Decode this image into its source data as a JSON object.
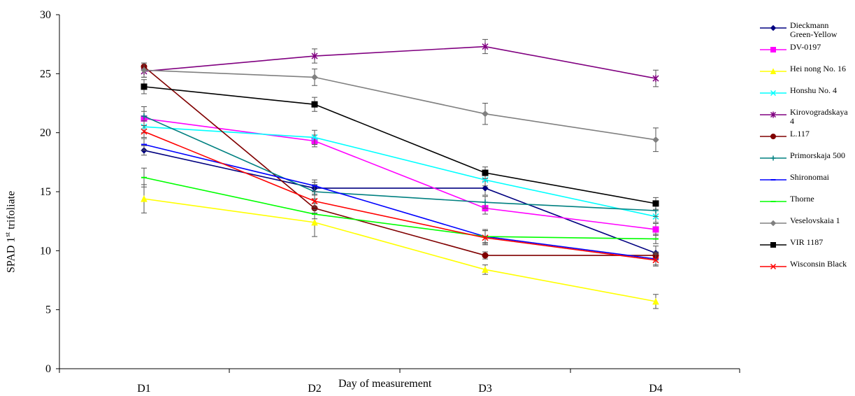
{
  "chart_data": {
    "type": "line",
    "xlabel": "Day of measurement",
    "ylabel_main": "SPAD 1",
    "ylabel_sup": "st",
    "ylabel_tail": " trifoliate",
    "categories": [
      "D1",
      "D2",
      "D3",
      "D4"
    ],
    "ylim": [
      0,
      30
    ],
    "yticks": [
      "0",
      "5",
      "10",
      "15",
      "20",
      "25",
      "30"
    ],
    "grid": false,
    "legend_position": "right",
    "series": [
      {
        "name": "Dieckmann Green-Yellow",
        "values": [
          18.5,
          15.3,
          15.3,
          9.8
        ],
        "err": [
          0.4,
          0.5,
          0.6,
          0.6
        ],
        "color": "#000080",
        "marker": "diamond"
      },
      {
        "name": "DV-0197",
        "values": [
          21.2,
          19.3,
          13.6,
          11.8
        ],
        "err": [
          0.6,
          0.5,
          0.5,
          0.5
        ],
        "color": "#ff00ff",
        "marker": "square"
      },
      {
        "name": "Hei nong No. 16",
        "values": [
          14.4,
          12.4,
          8.4,
          5.7
        ],
        "err": [
          1.2,
          1.2,
          0.4,
          0.6
        ],
        "color": "#ffff00",
        "marker": "triangle"
      },
      {
        "name": "Honshu No. 4",
        "values": [
          20.5,
          19.6,
          16.0,
          12.9
        ],
        "err": [
          0.5,
          0.6,
          0.5,
          0.5
        ],
        "color": "#00ffff",
        "marker": "x"
      },
      {
        "name": "Kirovogradskaya 4",
        "values": [
          25.2,
          26.5,
          27.3,
          24.6
        ],
        "err": [
          0.5,
          0.6,
          0.6,
          0.7
        ],
        "color": "#800080",
        "marker": "star"
      },
      {
        "name": "L.117",
        "values": [
          25.6,
          13.6,
          9.6,
          9.6
        ],
        "err": [
          0.3,
          0.4,
          0.3,
          0.3
        ],
        "color": "#800000",
        "marker": "circle"
      },
      {
        "name": "Primorskaja 500",
        "values": [
          21.4,
          15.0,
          14.1,
          13.4
        ],
        "err": [
          0.8,
          0.6,
          0.5,
          0.5
        ],
        "color": "#008080",
        "marker": "plus"
      },
      {
        "name": "Shironomai",
        "values": [
          19.0,
          15.5,
          11.2,
          9.3
        ],
        "err": [
          0.5,
          0.5,
          0.6,
          0.5
        ],
        "color": "#0000ff",
        "marker": "dash"
      },
      {
        "name": "Thorne",
        "values": [
          16.2,
          13.1,
          11.2,
          11.0
        ],
        "err": [
          0.8,
          0.4,
          0.5,
          0.4
        ],
        "color": "#00ff00",
        "marker": "dash"
      },
      {
        "name": "Veselovskaia 1",
        "values": [
          25.3,
          24.7,
          21.6,
          19.4
        ],
        "err": [
          0.6,
          0.7,
          0.9,
          1.0
        ],
        "color": "#808080",
        "marker": "diamond"
      },
      {
        "name": "VIR 1187",
        "values": [
          23.9,
          22.4,
          16.6,
          14.0
        ],
        "err": [
          0.6,
          0.6,
          0.5,
          0.5
        ],
        "color": "#000000",
        "marker": "square"
      },
      {
        "name": "Wisconsin Black",
        "values": [
          20.1,
          14.2,
          11.1,
          9.2
        ],
        "err": [
          0.5,
          0.5,
          0.6,
          0.5
        ],
        "color": "#ff0000",
        "marker": "x"
      }
    ]
  }
}
